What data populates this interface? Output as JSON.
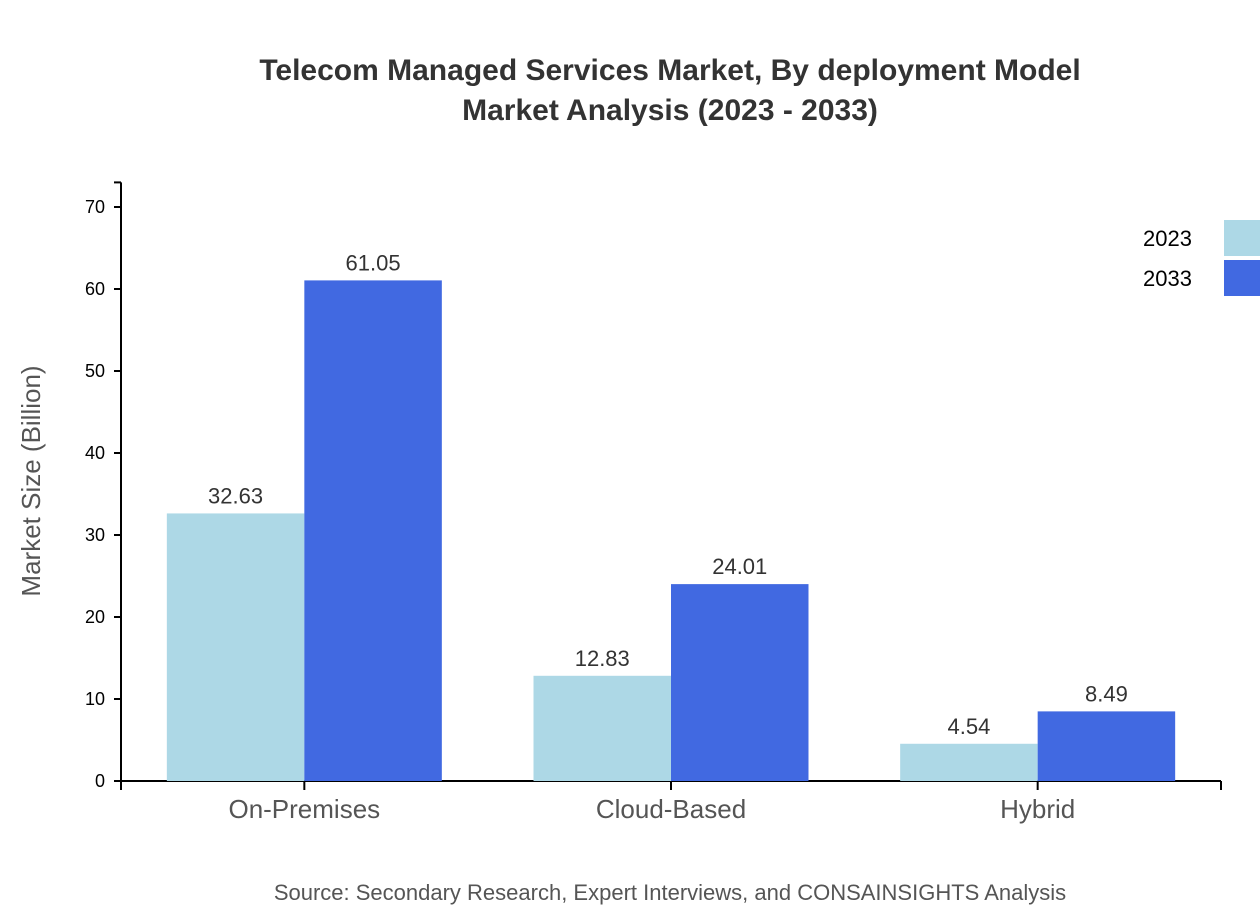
{
  "chart_data": {
    "type": "bar",
    "title": "Telecom Managed Services Market, By deployment Model",
    "subtitle": "Market Analysis (2023 - 2033)",
    "xlabel": "",
    "ylabel": "Market Size (Billion)",
    "ylim": [
      0,
      73
    ],
    "yticks": [
      0,
      10,
      20,
      30,
      40,
      50,
      60,
      70
    ],
    "categories": [
      "On-Premises",
      "Cloud-Based",
      "Hybrid"
    ],
    "series": [
      {
        "name": "2023",
        "color": "#add8e6",
        "values": [
          32.63,
          12.83,
          4.54
        ]
      },
      {
        "name": "2033",
        "color": "#4169e1",
        "values": [
          61.05,
          24.01,
          8.49
        ]
      }
    ],
    "grid": false,
    "legend": "top-right",
    "source": "Source: Secondary Research, Expert Interviews, and CONSAINSIGHTS Analysis"
  }
}
